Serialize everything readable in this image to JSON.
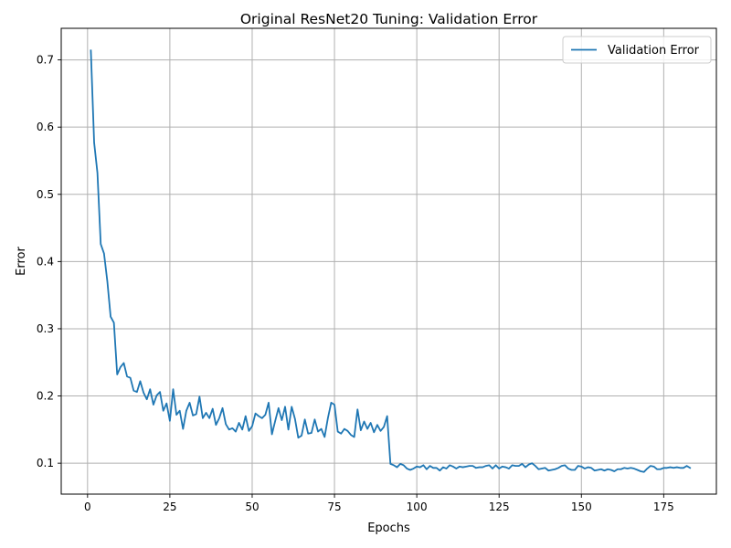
{
  "chart_data": {
    "type": "line",
    "title": "Original ResNet20 Tuning: Validation Error",
    "xlabel": "Epochs",
    "ylabel": "Error",
    "xlim": [
      -8,
      191
    ],
    "ylim": [
      0.054,
      0.747
    ],
    "xticks": [
      0,
      25,
      50,
      75,
      100,
      125,
      150,
      175
    ],
    "yticks": [
      0.1,
      0.2,
      0.3,
      0.4,
      0.5,
      0.6,
      0.7
    ],
    "xtick_labels": [
      "0",
      "25",
      "50",
      "75",
      "100",
      "125",
      "150",
      "175"
    ],
    "ytick_labels": [
      "0.1",
      "0.2",
      "0.3",
      "0.4",
      "0.5",
      "0.6",
      "0.7"
    ],
    "grid": true,
    "legend_position": "top-right",
    "series": [
      {
        "name": "Validation Error",
        "color": "#1f77b4",
        "x_start": 1,
        "values": [
          0.714,
          0.577,
          0.532,
          0.426,
          0.412,
          0.371,
          0.318,
          0.309,
          0.232,
          0.243,
          0.249,
          0.229,
          0.227,
          0.208,
          0.206,
          0.222,
          0.205,
          0.195,
          0.21,
          0.187,
          0.201,
          0.206,
          0.178,
          0.189,
          0.163,
          0.21,
          0.172,
          0.178,
          0.151,
          0.178,
          0.19,
          0.171,
          0.173,
          0.199,
          0.167,
          0.175,
          0.167,
          0.181,
          0.157,
          0.167,
          0.182,
          0.158,
          0.15,
          0.152,
          0.147,
          0.16,
          0.15,
          0.17,
          0.148,
          0.155,
          0.174,
          0.17,
          0.167,
          0.172,
          0.19,
          0.143,
          0.163,
          0.182,
          0.164,
          0.184,
          0.15,
          0.184,
          0.166,
          0.138,
          0.141,
          0.165,
          0.144,
          0.145,
          0.165,
          0.147,
          0.151,
          0.139,
          0.167,
          0.19,
          0.187,
          0.147,
          0.144,
          0.151,
          0.148,
          0.142,
          0.139,
          0.18,
          0.149,
          0.162,
          0.151,
          0.16,
          0.146,
          0.157,
          0.148,
          0.154,
          0.17,
          0.099,
          0.097,
          0.094,
          0.099,
          0.097,
          0.092,
          0.09,
          0.092,
          0.095,
          0.094,
          0.097,
          0.091,
          0.096,
          0.093,
          0.093,
          0.089,
          0.094,
          0.092,
          0.097,
          0.095,
          0.092,
          0.095,
          0.094,
          0.095,
          0.096,
          0.096,
          0.093,
          0.094,
          0.094,
          0.096,
          0.097,
          0.092,
          0.097,
          0.092,
          0.095,
          0.094,
          0.092,
          0.097,
          0.096,
          0.096,
          0.099,
          0.094,
          0.098,
          0.1,
          0.096,
          0.091,
          0.092,
          0.093,
          0.089,
          0.09,
          0.091,
          0.093,
          0.096,
          0.097,
          0.092,
          0.09,
          0.09,
          0.096,
          0.095,
          0.092,
          0.094,
          0.093,
          0.089,
          0.09,
          0.091,
          0.089,
          0.091,
          0.09,
          0.088,
          0.091,
          0.091,
          0.093,
          0.092,
          0.093,
          0.092,
          0.09,
          0.088,
          0.087,
          0.092,
          0.096,
          0.095,
          0.091,
          0.091,
          0.093,
          0.093,
          0.094,
          0.093,
          0.094,
          0.093,
          0.093,
          0.096,
          0.093
        ]
      }
    ]
  }
}
